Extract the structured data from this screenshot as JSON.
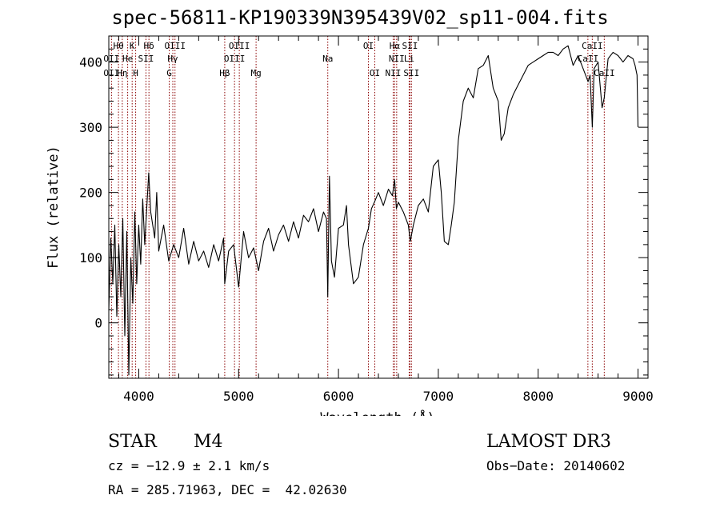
{
  "chart_data": {
    "type": "line",
    "title": "spec-56811-KP190339N395439V02_sp11-004.fits",
    "xlabel": "Wavelength (Å)",
    "ylabel": "Flux (relative)",
    "xlim": [
      3700,
      9100
    ],
    "ylim": [
      -85,
      440
    ],
    "x_ticks": [
      4000,
      5000,
      6000,
      7000,
      8000,
      9000
    ],
    "y_ticks": [
      0,
      100,
      200,
      300,
      400
    ],
    "grid": false,
    "series": [
      {
        "x": [
          3700,
          3720,
          3740,
          3760,
          3780,
          3800,
          3820,
          3840,
          3860,
          3880,
          3900,
          3920,
          3940,
          3960,
          3980,
          4000,
          4020,
          4040,
          4060,
          4080,
          4100,
          4120,
          4140,
          4160,
          4180,
          4200,
          4250,
          4300,
          4350,
          4400,
          4450,
          4500,
          4550,
          4600,
          4650,
          4700,
          4750,
          4800,
          4850,
          4861,
          4900,
          4950,
          5000,
          5050,
          5100,
          5150,
          5200,
          5250,
          5300,
          5350,
          5400,
          5450,
          5500,
          5550,
          5600,
          5650,
          5700,
          5750,
          5800,
          5850,
          5880,
          5893,
          5910,
          5930,
          5960,
          6000,
          6050,
          6080,
          6100,
          6150,
          6200,
          6250,
          6300,
          6330,
          6360,
          6400,
          6450,
          6500,
          6540,
          6563,
          6580,
          6600,
          6650,
          6700,
          6720,
          6750,
          6800,
          6850,
          6900,
          6950,
          7000,
          7030,
          7060,
          7100,
          7130,
          7160,
          7200,
          7250,
          7300,
          7350,
          7400,
          7450,
          7500,
          7550,
          7600,
          7630,
          7660,
          7700,
          7750,
          7800,
          7850,
          7900,
          7950,
          8000,
          8050,
          8100,
          8150,
          8200,
          8250,
          8300,
          8350,
          8400,
          8450,
          8500,
          8520,
          8542,
          8560,
          8600,
          8640,
          8662,
          8700,
          8750,
          8800,
          8850,
          8900,
          8950,
          8970,
          8990,
          9000
        ],
        "y": [
          20,
          130,
          60,
          150,
          10,
          120,
          40,
          160,
          -20,
          140,
          -80,
          100,
          30,
          170,
          60,
          150,
          90,
          190,
          120,
          175,
          230,
          170,
          150,
          130,
          200,
          110,
          150,
          95,
          120,
          100,
          145,
          90,
          125,
          95,
          110,
          85,
          120,
          95,
          130,
          60,
          110,
          120,
          55,
          140,
          100,
          115,
          80,
          125,
          145,
          110,
          135,
          150,
          125,
          155,
          130,
          165,
          155,
          175,
          140,
          170,
          160,
          40,
          225,
          95,
          70,
          145,
          150,
          180,
          120,
          60,
          70,
          120,
          145,
          175,
          185,
          200,
          180,
          205,
          195,
          220,
          175,
          185,
          170,
          150,
          125,
          150,
          180,
          190,
          170,
          240,
          250,
          200,
          125,
          120,
          150,
          185,
          280,
          340,
          360,
          345,
          390,
          395,
          410,
          360,
          340,
          280,
          290,
          330,
          350,
          365,
          380,
          395,
          400,
          405,
          410,
          415,
          415,
          410,
          420,
          425,
          395,
          410,
          390,
          370,
          380,
          300,
          390,
          400,
          330,
          345,
          405,
          415,
          410,
          400,
          410,
          405,
          395,
          380,
          300
        ],
        "color": "#000000"
      }
    ],
    "lines": [
      {
        "name": "Hθ",
        "x": 3797,
        "row": 0
      },
      {
        "name": "K",
        "x": 3934,
        "row": 0
      },
      {
        "name": "Hδ",
        "x": 4102,
        "row": 0
      },
      {
        "name": "OIII",
        "x": 4363,
        "row": 0
      },
      {
        "name": "OIII",
        "x": 5007,
        "row": 0
      },
      {
        "name": "OI",
        "x": 6300,
        "row": 0
      },
      {
        "name": "Hα",
        "x": 6563,
        "row": 0
      },
      {
        "name": "SII",
        "x": 6716,
        "row": 0
      },
      {
        "name": "CaII",
        "x": 8542,
        "row": 0
      },
      {
        "name": "OII",
        "x": 3727,
        "row": 1
      },
      {
        "name": "He",
        "x": 3889,
        "row": 1
      },
      {
        "name": "SII",
        "x": 4072,
        "row": 1
      },
      {
        "name": "Hγ",
        "x": 4341,
        "row": 1
      },
      {
        "name": "OIII",
        "x": 4959,
        "row": 1
      },
      {
        "name": "Na",
        "x": 5893,
        "row": 1
      },
      {
        "name": "NII",
        "x": 6583,
        "row": 1
      },
      {
        "name": "Li",
        "x": 6708,
        "row": 1
      },
      {
        "name": "CaII",
        "x": 8498,
        "row": 1
      },
      {
        "name": "OII",
        "x": 3727,
        "row": 2
      },
      {
        "name": "Hη",
        "x": 3835,
        "row": 2
      },
      {
        "name": "H",
        "x": 3969,
        "row": 2
      },
      {
        "name": "G",
        "x": 4305,
        "row": 2
      },
      {
        "name": "Hβ",
        "x": 4861,
        "row": 2
      },
      {
        "name": "Mg",
        "x": 5175,
        "row": 2
      },
      {
        "name": "OI",
        "x": 6364,
        "row": 2
      },
      {
        "name": "NII",
        "x": 6548,
        "row": 2
      },
      {
        "name": "SII",
        "x": 6731,
        "row": 2
      },
      {
        "name": "CaII",
        "x": 8662,
        "row": 2
      }
    ],
    "line_color": "#8b0000"
  },
  "info": {
    "object_class": "STAR",
    "subclass": "M4",
    "survey": "LAMOST DR3",
    "redshift": "cz = −12.9 ± 2.1 km/s",
    "obs_date": "Obs−Date: 20140602",
    "coords": "RA = 285.71963, DEC =  42.02630"
  }
}
